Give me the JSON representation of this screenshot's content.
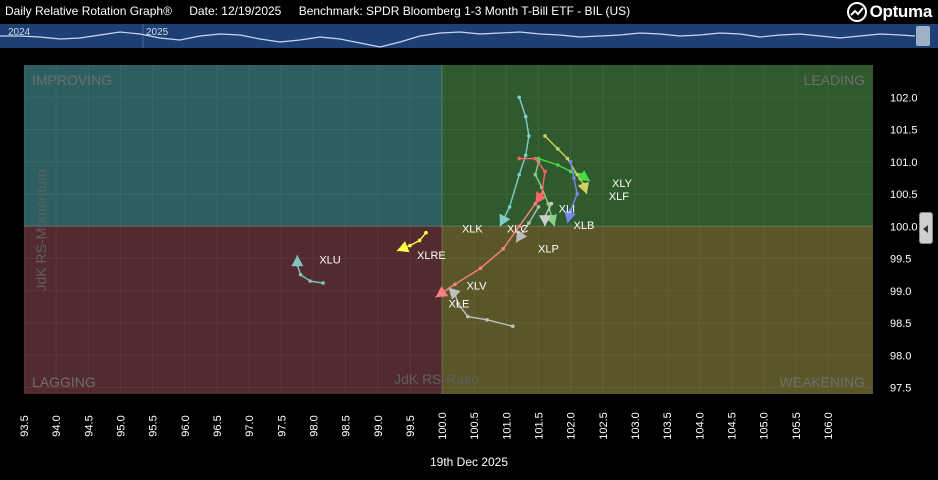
{
  "header": {
    "title": "Daily Relative Rotation Graph®",
    "date": "Date: 12/19/2025",
    "benchmark": "Benchmark: SPDR Bloomberg 1-3 Month T-Bill ETF - BIL (US)",
    "logo": "Optuma"
  },
  "navigator": {
    "year_labels": [
      "2024",
      "2025"
    ],
    "bg_color": "#1c3f74",
    "line_color": "#c9d7ea"
  },
  "footer": {
    "date_label": "19th Dec 2025"
  },
  "quadrants": {
    "improving": "IMPROVING",
    "leading": "LEADING",
    "lagging": "LAGGING",
    "weakening": "WEAKENING",
    "colors": {
      "improving": "#2e5f60",
      "leading": "#2f5a2d",
      "lagging": "#532b2e",
      "weakening": "#5a5628"
    }
  },
  "chart_data": {
    "type": "scatter",
    "xlabel": "JdK RS-Ratio",
    "ylabel": "JdK RS-Momentum",
    "xlim": [
      93.5,
      106.7
    ],
    "ylim": [
      97.4,
      102.5
    ],
    "x_ticks": [
      "93.5",
      "94.0",
      "94.5",
      "95.0",
      "95.5",
      "96.0",
      "96.5",
      "97.0",
      "97.5",
      "98.0",
      "98.5",
      "99.0",
      "99.5",
      "100.0",
      "100.5",
      "101.0",
      "101.5",
      "102.0",
      "102.5",
      "103.0",
      "103.5",
      "104.0",
      "104.5",
      "105.0",
      "105.5",
      "106.0"
    ],
    "y_ticks": [
      "97.5",
      "98.0",
      "98.5",
      "99.0",
      "99.5",
      "100.0",
      "100.5",
      "101.0",
      "101.5",
      "102.0"
    ],
    "center": [
      100,
      100
    ],
    "series": [
      {
        "name": "XLK",
        "color": "#7fcfcf",
        "points": [
          [
            101.2,
            102.0
          ],
          [
            101.3,
            101.7
          ],
          [
            101.35,
            101.4
          ],
          [
            101.3,
            101.1
          ],
          [
            101.2,
            100.8
          ],
          [
            101.05,
            100.3
          ],
          [
            100.9,
            100.0
          ]
        ],
        "label_offset": [
          -38,
          2
        ]
      },
      {
        "name": "XLY",
        "color": "#44dd44",
        "points": [
          [
            101.5,
            101.05
          ],
          [
            101.8,
            100.95
          ],
          [
            102.0,
            100.85
          ],
          [
            102.15,
            100.8
          ],
          [
            102.3,
            100.7
          ]
        ],
        "label_offset": [
          22,
          2
        ]
      },
      {
        "name": "XLF",
        "color": "#d0d060",
        "points": [
          [
            101.6,
            101.4
          ],
          [
            101.8,
            101.2
          ],
          [
            101.95,
            101.05
          ],
          [
            102.1,
            100.8
          ],
          [
            102.2,
            100.65
          ],
          [
            102.25,
            100.5
          ]
        ],
        "label_offset": [
          22,
          2
        ]
      },
      {
        "name": "XLI",
        "color": "#8ad08a",
        "points": [
          [
            101.5,
            101.0
          ],
          [
            101.45,
            100.8
          ],
          [
            101.55,
            100.6
          ],
          [
            101.65,
            100.35
          ],
          [
            101.7,
            100.15
          ],
          [
            101.75,
            100.0
          ]
        ],
        "label_offset": [
          4,
          -18
        ]
      },
      {
        "name": "XLB",
        "color": "#7788ee",
        "points": [
          [
            102.0,
            101.0
          ],
          [
            102.05,
            100.75
          ],
          [
            102.1,
            100.5
          ],
          [
            102.0,
            100.25
          ],
          [
            101.95,
            100.05
          ]
        ],
        "label_offset": [
          6,
          2
        ]
      },
      {
        "name": "XLC",
        "color": "#cccccc",
        "points": [
          [
            101.7,
            100.35
          ],
          [
            101.6,
            100.15
          ],
          [
            101.6,
            100.0
          ]
        ],
        "label_offset": [
          -38,
          2
        ]
      },
      {
        "name": "XLP",
        "color": "#bbbbbb",
        "points": [
          [
            101.5,
            100.3
          ],
          [
            101.35,
            100.05
          ],
          [
            101.15,
            99.75
          ]
        ],
        "label_offset": [
          22,
          6
        ]
      },
      {
        "name": "XLV",
        "color": "#ff6666",
        "points": [
          [
            101.2,
            101.05
          ],
          [
            101.45,
            101.05
          ],
          [
            101.6,
            100.85
          ],
          [
            101.55,
            100.5
          ],
          [
            101.45,
            100.35
          ]
        ],
        "label_offset": [
          0,
          0
        ]
      },
      {
        "name": "XLE",
        "color": "#c0c0c0",
        "points": [
          [
            101.1,
            98.45
          ],
          [
            100.7,
            98.55
          ],
          [
            100.4,
            98.6
          ],
          [
            100.25,
            98.8
          ],
          [
            100.2,
            98.95
          ],
          [
            100.1,
            99.05
          ]
        ],
        "label_offset": [
          2,
          18
        ]
      },
      {
        "name": "XLVtrail",
        "color": "#ff8080",
        "points": [
          [
            101.45,
            100.35
          ],
          [
            101.2,
            100.0
          ],
          [
            100.95,
            99.65
          ],
          [
            100.6,
            99.35
          ],
          [
            100.2,
            99.1
          ],
          [
            99.9,
            98.9
          ]
        ],
        "label_offset": [
          0,
          0
        ]
      },
      {
        "name": "XLRE",
        "color": "#ffff44",
        "points": [
          [
            99.75,
            99.9
          ],
          [
            99.65,
            99.78
          ],
          [
            99.5,
            99.7
          ],
          [
            99.3,
            99.62
          ]
        ],
        "label_offset": [
          20,
          4
        ]
      },
      {
        "name": "XLU",
        "color": "#7fc3c3",
        "points": [
          [
            98.15,
            99.12
          ],
          [
            97.95,
            99.15
          ],
          [
            97.8,
            99.25
          ],
          [
            97.75,
            99.4
          ],
          [
            97.75,
            99.55
          ]
        ],
        "label_offset": [
          22,
          4
        ]
      }
    ],
    "visible_labels": [
      {
        "text": "XLK",
        "series": "XLK"
      },
      {
        "text": "XLY",
        "series": "XLY"
      },
      {
        "text": "XLF",
        "series": "XLF"
      },
      {
        "text": "XLI",
        "series": "XLI"
      },
      {
        "text": "XLB",
        "series": "XLB"
      },
      {
        "text": "XLC",
        "series": "XLC"
      },
      {
        "text": "XLP",
        "series": "XLP"
      },
      {
        "text": "XLV",
        "series": "XLE",
        "offset": [
          18,
          -2
        ]
      },
      {
        "text": "XLE",
        "series": "XLE",
        "offset": [
          0,
          16
        ]
      },
      {
        "text": "XLRE",
        "series": "XLRE"
      },
      {
        "text": "XLU",
        "series": "XLU"
      }
    ]
  }
}
